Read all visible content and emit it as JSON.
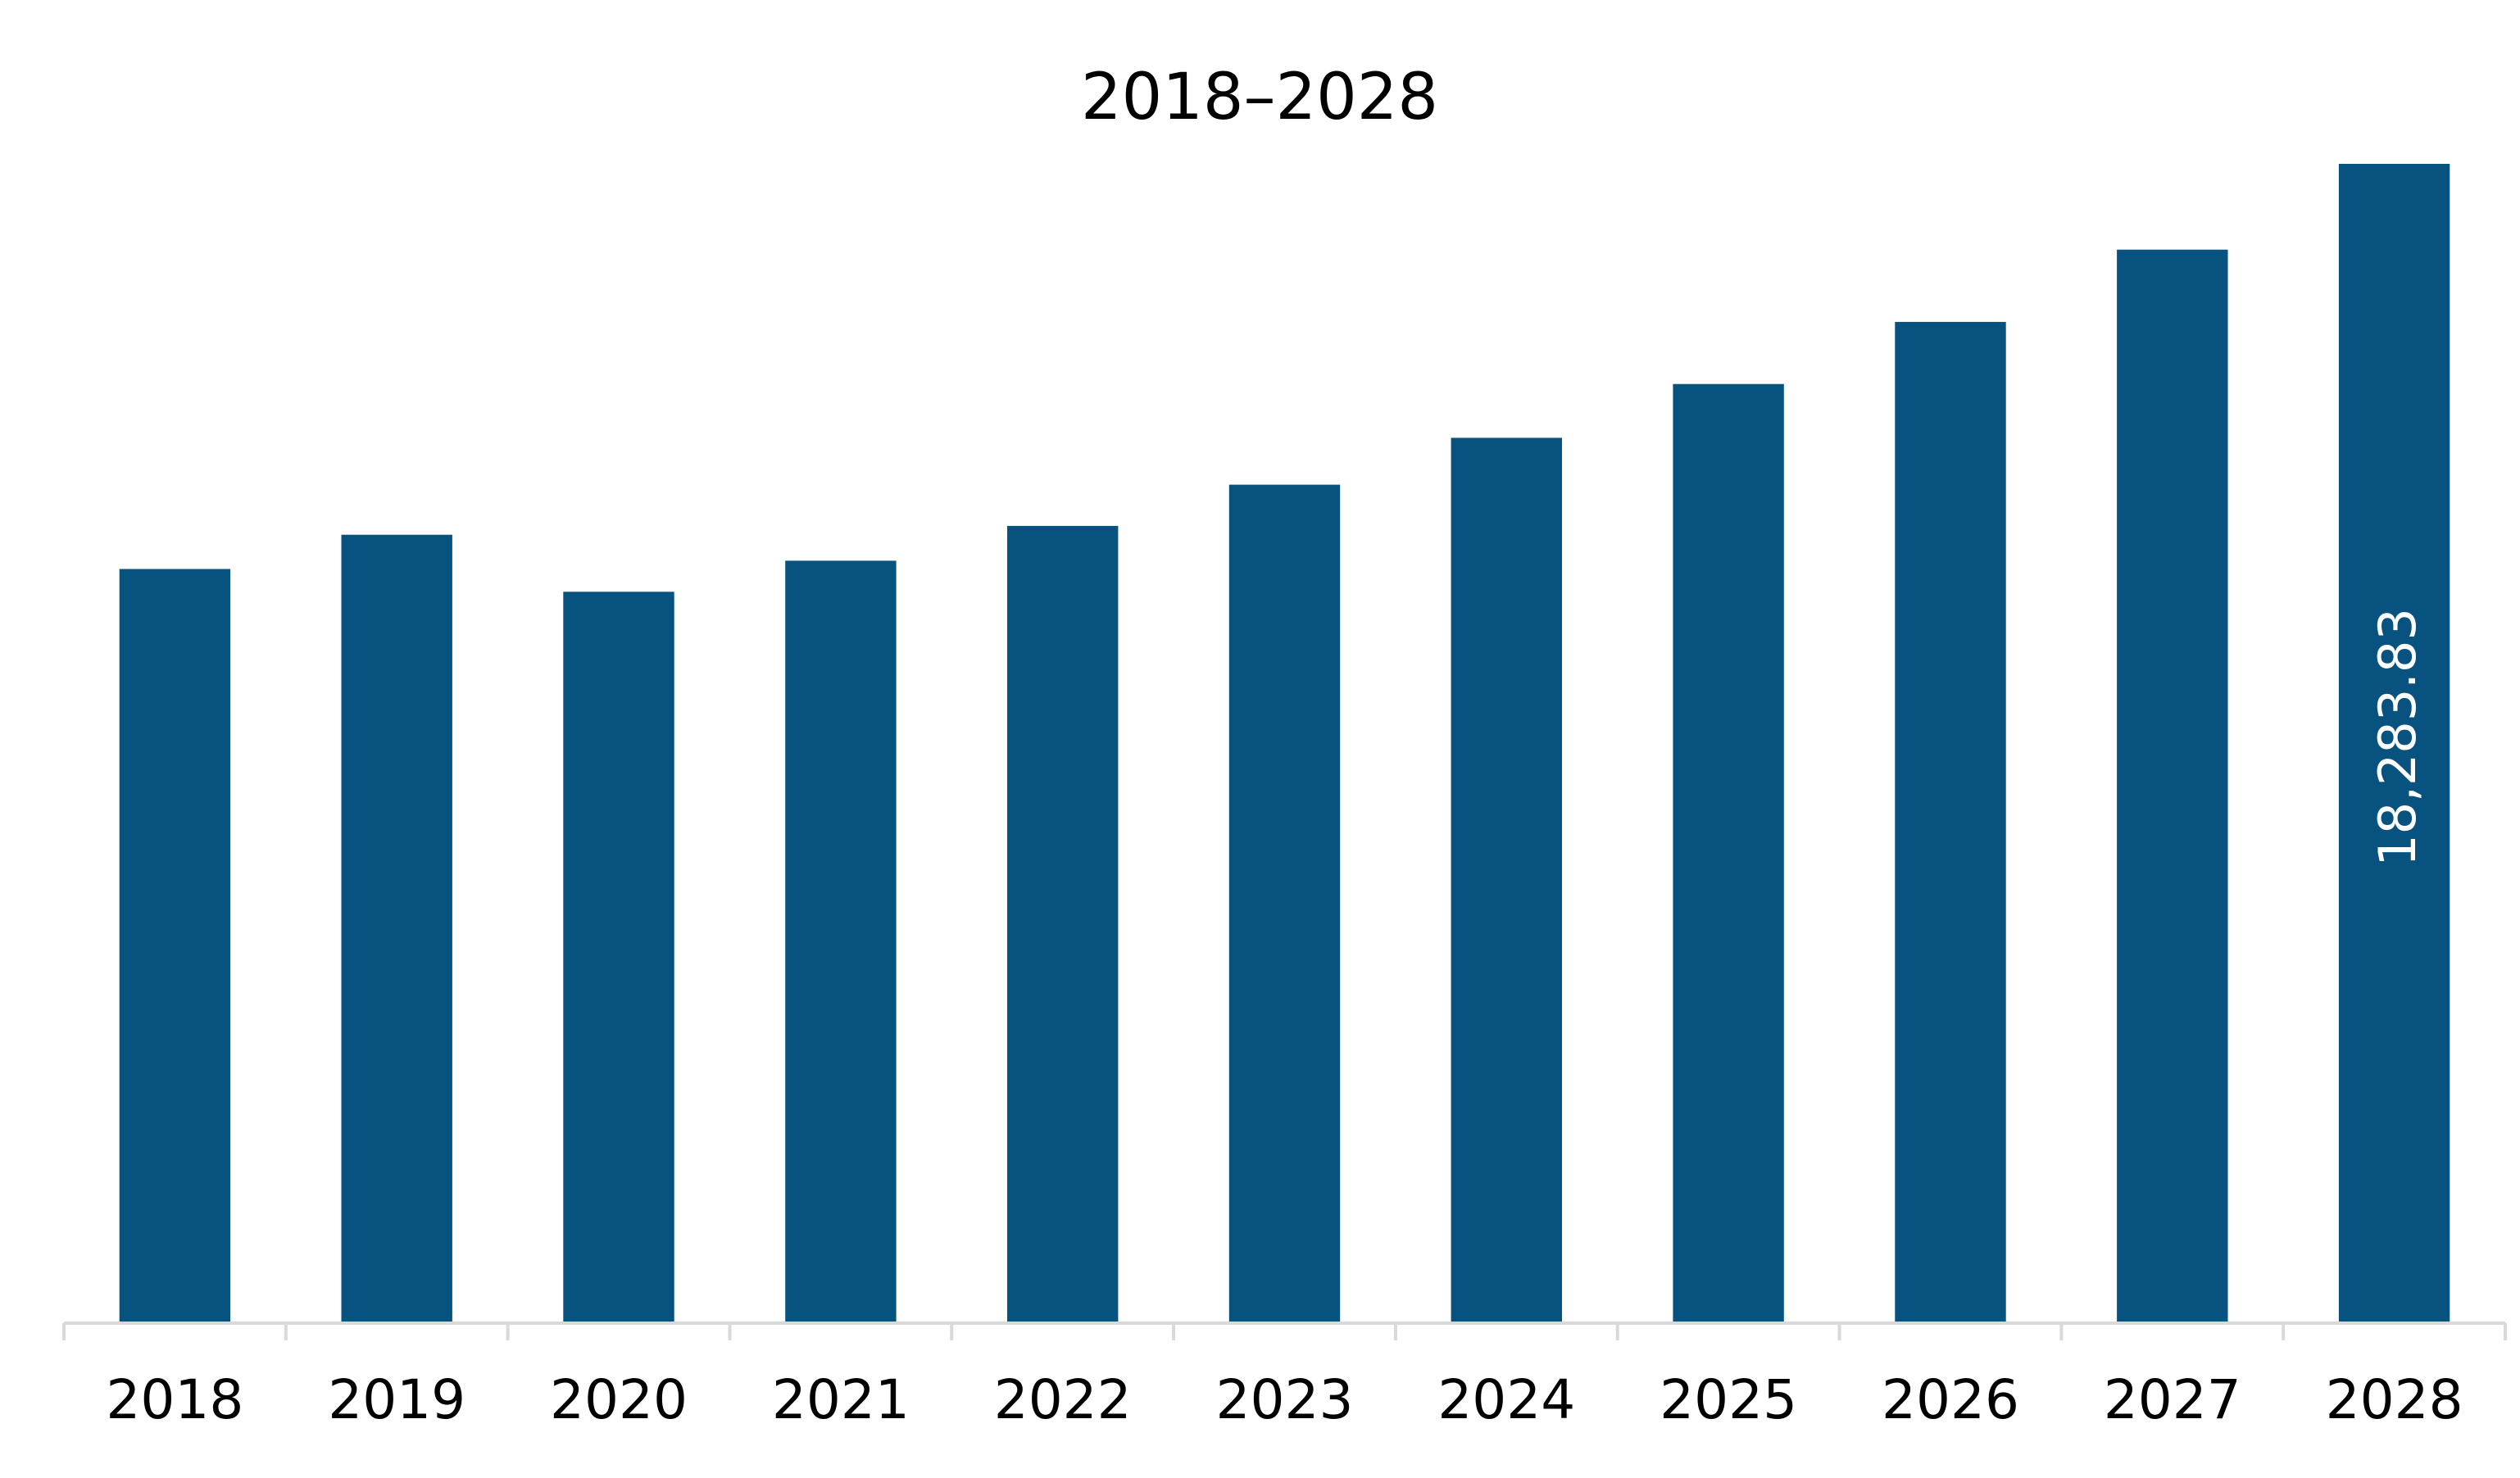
{
  "chart_data": {
    "type": "bar",
    "title": "2018–2028",
    "xlabel": "",
    "ylabel": "",
    "categories": [
      "2018",
      "2019",
      "2020",
      "2021",
      "2022",
      "2023",
      "2024",
      "2025",
      "2026",
      "2027",
      "2028"
    ],
    "values": [
      11890,
      12430,
      11530,
      12020,
      12570,
      13220,
      13960,
      14810,
      15790,
      16930,
      18283.83
    ],
    "data_labels": [
      "",
      "",
      "",
      "",
      "",
      "",
      "",
      "",
      "",
      "",
      "18,283.83"
    ],
    "ylim": [
      0,
      18283.83
    ],
    "grid": false,
    "legend": "none",
    "colors": {
      "bar": "#08527f",
      "axis": "#d9d9d9",
      "text": "#000000",
      "data_label": "#ffffff"
    }
  }
}
